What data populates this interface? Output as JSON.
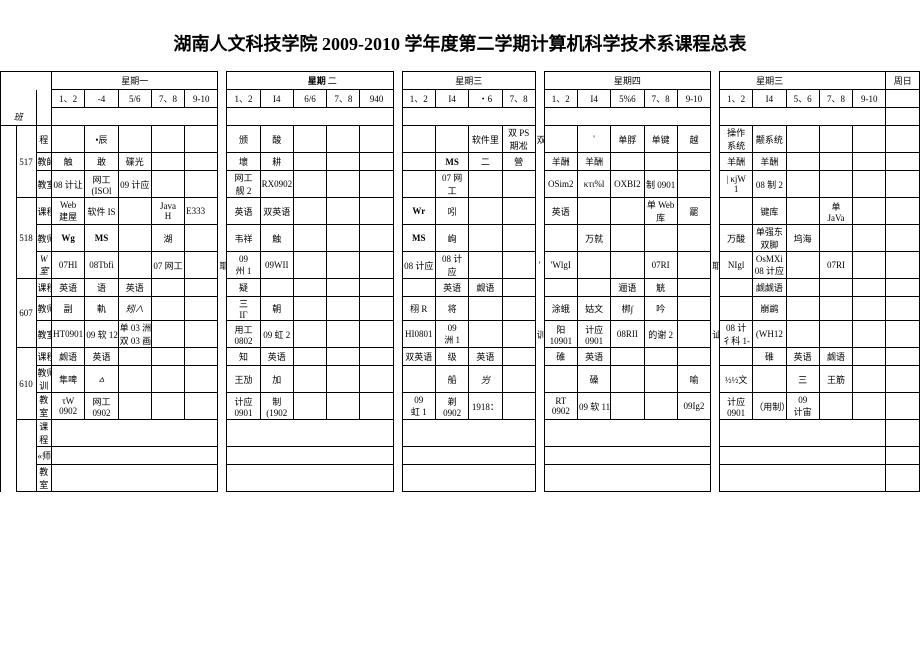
{
  "title": "湖南人文科技学院 2009-2010 学年度第二学期计算机科学技术系课程总表",
  "days": {
    "d1": "星期一",
    "d2": "星期",
    "d3": "星期三",
    "d4": "星期四",
    "d5": "星期三",
    "d6": "周日"
  },
  "slots": {
    "s12": "1、2",
    "s4": "-4",
    "s56": "5/6",
    "s78": "7、8",
    "s910": "9-10",
    "s12b": "1、2",
    "s14": "I4",
    "s56b": "6/6",
    "s78b": "7、8",
    "s940": "940",
    "s12c": "1、2",
    "s14c": "I4",
    "s6c": "・6",
    "s78c": "7、8",
    "s12d": "1、2",
    "s14d": "I4",
    "s56d": "5%6",
    "s78d": "7、8",
    "s910d": "9-10",
    "s12e": "1、2",
    "s14e": "I4",
    "s5e": "5、6",
    "s78e": "7、8",
    "s910e": "9-10"
  },
  "class_ids": {
    "c517": "517",
    "c518": "518",
    "c607": "607",
    "c610": "610"
  },
  "row_labels": {
    "ban": "班",
    "cheng": "程",
    "jiaoshi": "教師",
    "jiaoshi2": "教室",
    "kecheng": "课程",
    "keshi": "教师",
    "ke": "课",
    "cheng2": "程",
    "shi": "«师",
    "shi2": "教"
  },
  "c517": {
    "r1_c2": "•辰",
    "r1_d2_c1": "颁",
    "r1_d2_c2": "酸",
    "r1_d3_c3": "软件里",
    "r1_d3_c4": "双 PS",
    "r1_d3_c4b": "期凇",
    "r1_d3_c5": "双 PS",
    "r1_d4_c2": "'",
    "r1_d4_c3": "单脬",
    "r1_d4_c4": "单键",
    "r1_d4_c5": "越",
    "r1_d5_c1": "操作",
    "r1_d5_c1b": "系统",
    "r1_d5_c2": "颟系统",
    "r2_c1": "触",
    "r2_c2": "敢",
    "r2_c3": "碟光",
    "r2_d2_c1": "壞",
    "r2_d2_c2": "耕",
    "r2_d3_c2": "MS",
    "r2_d3_c3": "二",
    "r2_d3_c4": "營",
    "r2_d4_c1": "羊酬",
    "r2_d4_c2": "羊酬",
    "r2_d5_c1": "羊酬",
    "r2_d5_c2": "羊酬",
    "r3_c1": "08 计让",
    "r3_c2": "网工",
    "r3_c2b": "(ISOl",
    "r3_c3": "09 计应",
    "r3_d2_c1": "网工",
    "r3_d2_c1b": "舰 2",
    "r3_d2_c2": "RX0902",
    "r3_d3_c2": "07 网",
    "r3_d3_c2b": "工",
    "r3_d4_c1": "OSim2",
    "r3_d4_c2": "κτι%l",
    "r3_d4_c3": "OXBI2",
    "r3_d4_c4": "制 0901",
    "r3_d5_c1": "| κjW",
    "r3_d5_c1b": "1",
    "r3_d5_c2": "08 制 2"
  },
  "c518": {
    "r1_c1": "Web",
    "r1_c1b": "建屋",
    "r1_c2": "软件 IS",
    "r1_c4": "Java",
    "r1_c4b": "H",
    "r1_c4c": "E333",
    "r1_d2_c1": "英语",
    "r1_d2_c2": "双英语",
    "r1_d3_c1": "Wr",
    "r1_d3_c2": "吲",
    "r1_d4_c1": "英语",
    "r1_d4_c4": "单 Web",
    "r1_d4_c4b": "库",
    "r1_d4_c5": "罷",
    "r1_d5_c2": "键库",
    "r1_d5_c4": "单",
    "r1_d5_c4b": "JaVa",
    "r2_c1": "Wg",
    "r2_c2": "MS",
    "r2_c4": "湖",
    "r2_d2_c1": "韦祥",
    "r2_d2_c2": "触",
    "r2_d3_c1": "MS",
    "r2_d3_c2": "峋",
    "r2_d4_c2": "万就",
    "r2_d5_c1": "万酸",
    "r2_d5_c2": "单强东",
    "r2_d5_c2b": "双脚",
    "r2_d5_c3": "坞海",
    "r3_lbl": "W",
    "r3_lbl2": "室",
    "r3_c1": "07HI",
    "r3_c2": "08Tbfi",
    "r3_c4": "07 网工",
    "r3_d2_c1": "09",
    "r3_d2_c1b": "州 1",
    "r3_d2_c2": "09WII",
    "r3_d3_c1": "08 计应",
    "r3_d3_c2": "08 计",
    "r3_d3_c2b": "应",
    "r3_d4_c1": "'WlgI",
    "r3_d4_c4": "07RI",
    "r3_d5_c1": "NIgl",
    "r3_d5_c2": "OsMXi",
    "r3_d5_c2b": "08 计应",
    "r3_d5_c4": "07RI"
  },
  "c607": {
    "r1_c1": "英语",
    "r1_c2": "语",
    "r1_c3": "英语",
    "r1_d2_c1": "疑",
    "r1_d3_c2": "英语",
    "r1_d3_c3": "觑语",
    "r1_d4_c3": "逦语",
    "r1_d4_c4": "觥",
    "r1_d5_c2": "觑觑语",
    "r2_c1": "副",
    "r2_c2": "軌",
    "r2_c3": "矧∧",
    "r2_d2_c1": "三",
    "r2_d2_c1b": "IΓ",
    "r2_d2_c2": "朝",
    "r2_d3_c1": "栩 R",
    "r2_d3_c2": "将",
    "r2_d4_c1": "涂蛾",
    "r2_d4_c2": "姑文",
    "r2_d4_c3": "梆∫",
    "r2_d4_c4": "吟",
    "r2_d5_c2": "崩鹚",
    "r3_c1": "HT0901",
    "r3_c2": "09 软 12",
    "r3_c3": "单 03 洲 1",
    "r3_c3b": "双 03 画 2",
    "r3_d2_c1": "用工",
    "r3_d2_c1b": "0802",
    "r3_d2_c2": "09 虹 2",
    "r3_d3_c1": "HI0801",
    "r3_d3_c2": "09",
    "r3_d3_c2b": "洲 1",
    "r3_d4_x": "训",
    "r3_d4_c1": "阳",
    "r3_d4_c1b": "10901",
    "r3_d4_c2": "计应",
    "r3_d4_c2b": "0901",
    "r3_d4_c3": "08RII",
    "r3_d4_c4": "的谢 2",
    "r3_d5_x": "讪",
    "r3_d5_c1": "08 计",
    "r3_d5_c1b": "彳科 1-",
    "r3_d5_c2": "(WH12"
  },
  "c610": {
    "r1_c1": "觑语",
    "r1_c2": "英语",
    "r1_d2_c1": "知",
    "r1_d2_c2": "英语",
    "r1_d3_c1": "双英语",
    "r1_d3_c2": "级",
    "r1_d3_c3": "英语",
    "r1_d4_c1": "碓",
    "r1_d4_c2": "英语",
    "r1_d5_c2": "碓",
    "r1_d5_c3": "英语",
    "r1_d5_c4": "觑语",
    "r2_lbl": "训",
    "r2_c1": "隼啤",
    "r2_c2": "⩟",
    "r2_d2_c1": "王劢",
    "r2_d2_c2": "加",
    "r2_d3_c2": "船",
    "r2_d3_c3": "屶",
    "r2_d4_c2": "磉",
    "r2_d4_c5": "喻",
    "r2_d5_c1": "½½文",
    "r2_d5_c3": "三",
    "r2_d5_c4": "王筋",
    "r3_c1": "τW",
    "r3_c1b": "0902",
    "r3_c2": "网工",
    "r3_c2b": "0902",
    "r3_d2_c1": "计应",
    "r3_d2_c1b": "0901",
    "r3_d2_c2": "制",
    "r3_d2_c2b": "(1902",
    "r3_d3_c1": "09",
    "r3_d3_c1b": "虹 1",
    "r3_d3_c2": "剃",
    "r3_d3_c2b": "0902",
    "r3_d3_c3": "1918：",
    "r3_d4_c1": "RT",
    "r3_d4_c1b": "0902",
    "r3_d4_c2": "09 软 11",
    "r3_d4_c5": "09Ig2",
    "r3_d5_c1": "计应",
    "r3_d5_c1b": "0901",
    "r3_d5_c2": "（用制）",
    "r3_d5_c3": "09",
    "r3_d5_c3b": "计宙"
  },
  "colors": {
    "bg": "#ffffff",
    "border": "#000000",
    "text": "#000000"
  }
}
